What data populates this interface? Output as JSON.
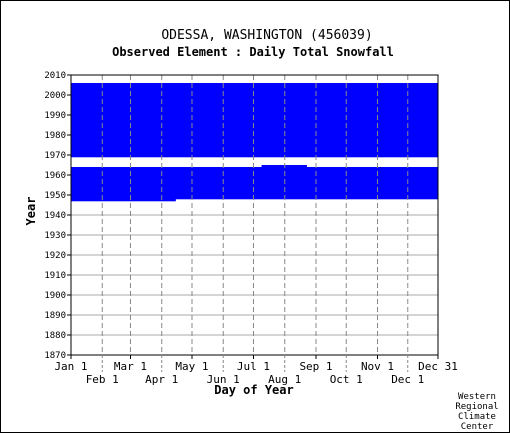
{
  "chart_data": {
    "type": "heatmap",
    "title": "ODESSA, WASHINGTON   (456039)",
    "subtitle": "Observed Element : Daily Total Snowfall",
    "xlabel": "Day of Year",
    "ylabel": "Year",
    "x_ticks_row1": [
      "Jan 1",
      "Mar 1",
      "May 1",
      "Jul 1",
      "Sep 1",
      "Nov 1",
      "Dec 31"
    ],
    "x_ticks_row2": [
      "Feb 1",
      "Apr 1",
      "Jun 1",
      "Aug 1",
      "Oct 1",
      "Dec 1"
    ],
    "y_ticks": [
      "1870",
      "1880",
      "1890",
      "1900",
      "1910",
      "1920",
      "1930",
      "1940",
      "1950",
      "1960",
      "1970",
      "1980",
      "1990",
      "2000",
      "2010"
    ],
    "xlim": [
      1,
      365
    ],
    "ylim": [
      1870,
      2010
    ],
    "grid": true,
    "mark_color": "#0000ff",
    "filled_years": [
      1947,
      2005
    ],
    "missing_years": [
      1965,
      1966,
      1967,
      1968
    ],
    "data_end_day_1947": 105,
    "partial_year_1964": {
      "start_day": 190,
      "end_day": 235
    }
  },
  "credit": [
    "Western",
    "Regional",
    "Climate",
    "Center"
  ]
}
